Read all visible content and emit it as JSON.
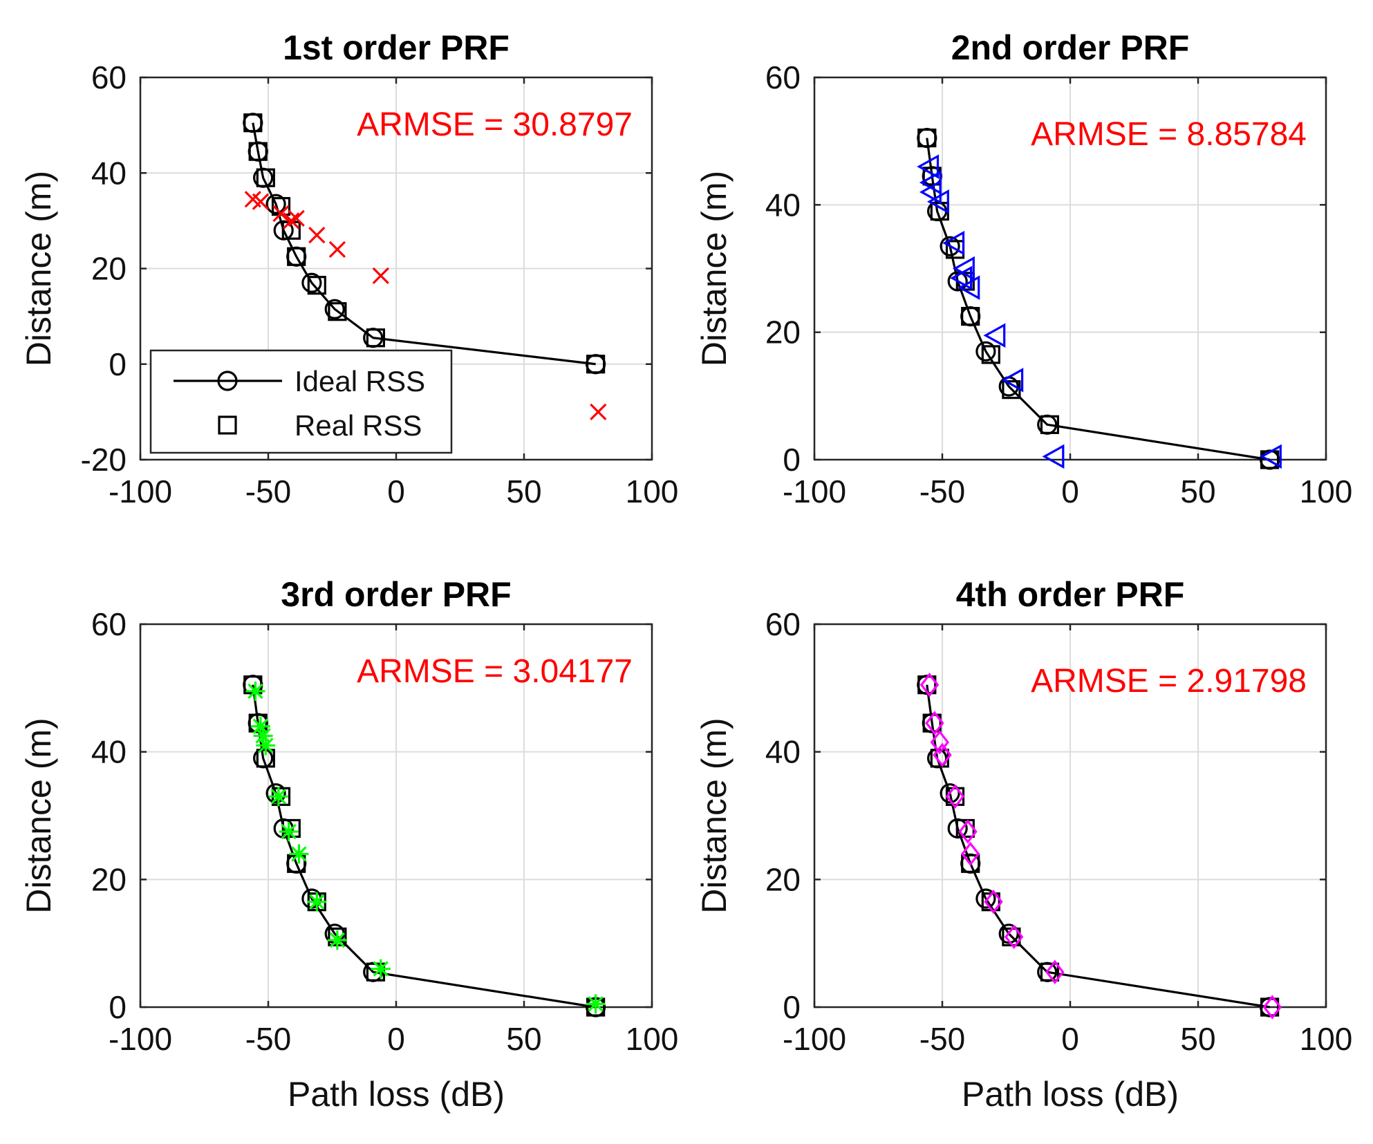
{
  "chart_data": [
    {
      "type": "scatter",
      "title": "1st order PRF",
      "xlabel": "",
      "ylabel": "Distance (m)",
      "xlim": [
        -100,
        100
      ],
      "ylim": [
        -20,
        60
      ],
      "xticks": [
        "-100",
        "-50",
        "0",
        "50",
        "100"
      ],
      "yticks": [
        "-20",
        "0",
        "20",
        "40",
        "60"
      ],
      "annotation": "ARMSE =  30.8797",
      "annotation_color": "#ff0000",
      "legend": {
        "position": "bottom-left",
        "entries": [
          "Ideal RSS",
          "Real RSS"
        ]
      },
      "series": [
        {
          "name": "Ideal RSS",
          "marker": "circle",
          "line": true,
          "color": "#000000",
          "points": [
            [
              -56,
              50.5
            ],
            [
              -54,
              44.5
            ],
            [
              -52,
              39
            ],
            [
              -47,
              33.5
            ],
            [
              -44,
              28
            ],
            [
              -39,
              22.5
            ],
            [
              -33,
              17
            ],
            [
              -24,
              11.5
            ],
            [
              -9,
              5.5
            ],
            [
              78,
              0
            ]
          ]
        },
        {
          "name": "Real RSS",
          "marker": "square",
          "line": false,
          "color": "#000000",
          "points": [
            [
              -56,
              50.5
            ],
            [
              -54,
              44.5
            ],
            [
              -51,
              39
            ],
            [
              -45,
              33
            ],
            [
              -41,
              28
            ],
            [
              -39,
              22.5
            ],
            [
              -31,
              16.5
            ],
            [
              -23,
              11
            ],
            [
              -8,
              5.5
            ],
            [
              78,
              0
            ]
          ]
        },
        {
          "name": "1st order PRF",
          "marker": "x",
          "line": false,
          "color": "#ff0000",
          "points": [
            [
              -56,
              34.5
            ],
            [
              -53,
              34
            ],
            [
              -45,
              31.5
            ],
            [
              -41,
              30
            ],
            [
              -39,
              30.5
            ],
            [
              -31,
              27
            ],
            [
              -23,
              24
            ],
            [
              -6,
              18.5
            ],
            [
              79,
              -10
            ]
          ]
        }
      ]
    },
    {
      "type": "scatter",
      "title": "2nd order PRF",
      "xlabel": "",
      "ylabel": "Distance (m)",
      "xlim": [
        -100,
        100
      ],
      "ylim": [
        0,
        60
      ],
      "xticks": [
        "-100",
        "-50",
        "0",
        "50",
        "100"
      ],
      "yticks": [
        "0",
        "20",
        "40",
        "60"
      ],
      "annotation": "ARMSE =  8.85784",
      "annotation_color": "#ff0000",
      "series": [
        {
          "name": "Ideal RSS",
          "marker": "circle",
          "line": true,
          "color": "#000000",
          "points": [
            [
              -56,
              50.5
            ],
            [
              -54,
              44.5
            ],
            [
              -52,
              39
            ],
            [
              -47,
              33.5
            ],
            [
              -44,
              28
            ],
            [
              -39,
              22.5
            ],
            [
              -33,
              17
            ],
            [
              -24,
              11.5
            ],
            [
              -9,
              5.5
            ],
            [
              78,
              0
            ]
          ]
        },
        {
          "name": "Real RSS",
          "marker": "square",
          "line": false,
          "color": "#000000",
          "points": [
            [
              -56,
              50.5
            ],
            [
              -54,
              44.5
            ],
            [
              -51,
              39
            ],
            [
              -45,
              33
            ],
            [
              -41,
              28
            ],
            [
              -39,
              22.5
            ],
            [
              -31,
              16.5
            ],
            [
              -23,
              11
            ],
            [
              -8,
              5.5
            ],
            [
              78,
              0
            ]
          ]
        },
        {
          "name": "2nd order PRF",
          "marker": "triangle-left",
          "line": false,
          "color": "#0000ff",
          "points": [
            [
              -55,
              46
            ],
            [
              -54,
              43.5
            ],
            [
              -54,
              42
            ],
            [
              -51,
              40.5
            ],
            [
              -45,
              34
            ],
            [
              -41,
              30
            ],
            [
              -42,
              28.5
            ],
            [
              -39,
              27
            ],
            [
              -29,
              19.5
            ],
            [
              -22,
              12.5
            ],
            [
              -6,
              0.5
            ],
            [
              79,
              0.5
            ]
          ]
        }
      ]
    },
    {
      "type": "scatter",
      "title": "3rd order PRF",
      "xlabel": "Path loss (dB)",
      "ylabel": "Distance (m)",
      "xlim": [
        -100,
        100
      ],
      "ylim": [
        0,
        60
      ],
      "xticks": [
        "-100",
        "-50",
        "0",
        "50",
        "100"
      ],
      "yticks": [
        "0",
        "20",
        "40",
        "60"
      ],
      "annotation": "ARMSE =  3.04177",
      "annotation_color": "#ff0000",
      "series": [
        {
          "name": "Ideal RSS",
          "marker": "circle",
          "line": true,
          "color": "#000000",
          "points": [
            [
              -56,
              50.5
            ],
            [
              -54,
              44.5
            ],
            [
              -52,
              39
            ],
            [
              -47,
              33.5
            ],
            [
              -44,
              28
            ],
            [
              -39,
              22.5
            ],
            [
              -33,
              17
            ],
            [
              -24,
              11.5
            ],
            [
              -9,
              5.5
            ],
            [
              78,
              0
            ]
          ]
        },
        {
          "name": "Real RSS",
          "marker": "square",
          "line": false,
          "color": "#000000",
          "points": [
            [
              -56,
              50.5
            ],
            [
              -54,
              44.5
            ],
            [
              -51,
              39
            ],
            [
              -45,
              33
            ],
            [
              -41,
              28
            ],
            [
              -39,
              22.5
            ],
            [
              -31,
              16.5
            ],
            [
              -23,
              11
            ],
            [
              -8,
              5.5
            ],
            [
              78,
              0
            ]
          ]
        },
        {
          "name": "3rd order PRF",
          "marker": "asterisk",
          "line": false,
          "color": "#00ff00",
          "points": [
            [
              -55,
              49.5
            ],
            [
              -53,
              44
            ],
            [
              -52,
              42.5
            ],
            [
              -51,
              41
            ],
            [
              -46,
              33
            ],
            [
              -42,
              27.5
            ],
            [
              -38,
              24
            ],
            [
              -31,
              16.5
            ],
            [
              -23,
              10.5
            ],
            [
              -6,
              6
            ],
            [
              78,
              0.5
            ]
          ]
        }
      ]
    },
    {
      "type": "scatter",
      "title": "4th order PRF",
      "xlabel": "Path loss (dB)",
      "ylabel": "Distance (m)",
      "xlim": [
        -100,
        100
      ],
      "ylim": [
        0,
        60
      ],
      "xticks": [
        "-100",
        "-50",
        "0",
        "50",
        "100"
      ],
      "yticks": [
        "0",
        "20",
        "40",
        "60"
      ],
      "annotation": "ARMSE =  2.91798",
      "annotation_color": "#ff0000",
      "series": [
        {
          "name": "Ideal RSS",
          "marker": "circle",
          "line": true,
          "color": "#000000",
          "points": [
            [
              -56,
              50.5
            ],
            [
              -54,
              44.5
            ],
            [
              -52,
              39
            ],
            [
              -47,
              33.5
            ],
            [
              -44,
              28
            ],
            [
              -39,
              22.5
            ],
            [
              -33,
              17
            ],
            [
              -24,
              11.5
            ],
            [
              -9,
              5.5
            ],
            [
              78,
              0
            ]
          ]
        },
        {
          "name": "Real RSS",
          "marker": "square",
          "line": false,
          "color": "#000000",
          "points": [
            [
              -56,
              50.5
            ],
            [
              -54,
              44.5
            ],
            [
              -51,
              39
            ],
            [
              -45,
              33
            ],
            [
              -41,
              28
            ],
            [
              -39,
              22.5
            ],
            [
              -31,
              16.5
            ],
            [
              -23,
              11
            ],
            [
              -8,
              5.5
            ],
            [
              78,
              0
            ]
          ]
        },
        {
          "name": "4th order PRF",
          "marker": "diamond",
          "line": false,
          "color": "#ff00ff",
          "points": [
            [
              -55,
              50.5
            ],
            [
              -53,
              44.5
            ],
            [
              -51,
              41.5
            ],
            [
              -50,
              39.5
            ],
            [
              -45,
              33
            ],
            [
              -40,
              27.5
            ],
            [
              -39,
              24
            ],
            [
              -30,
              16.5
            ],
            [
              -22,
              11
            ],
            [
              -6,
              5.5
            ],
            [
              79,
              0
            ]
          ]
        }
      ]
    }
  ]
}
